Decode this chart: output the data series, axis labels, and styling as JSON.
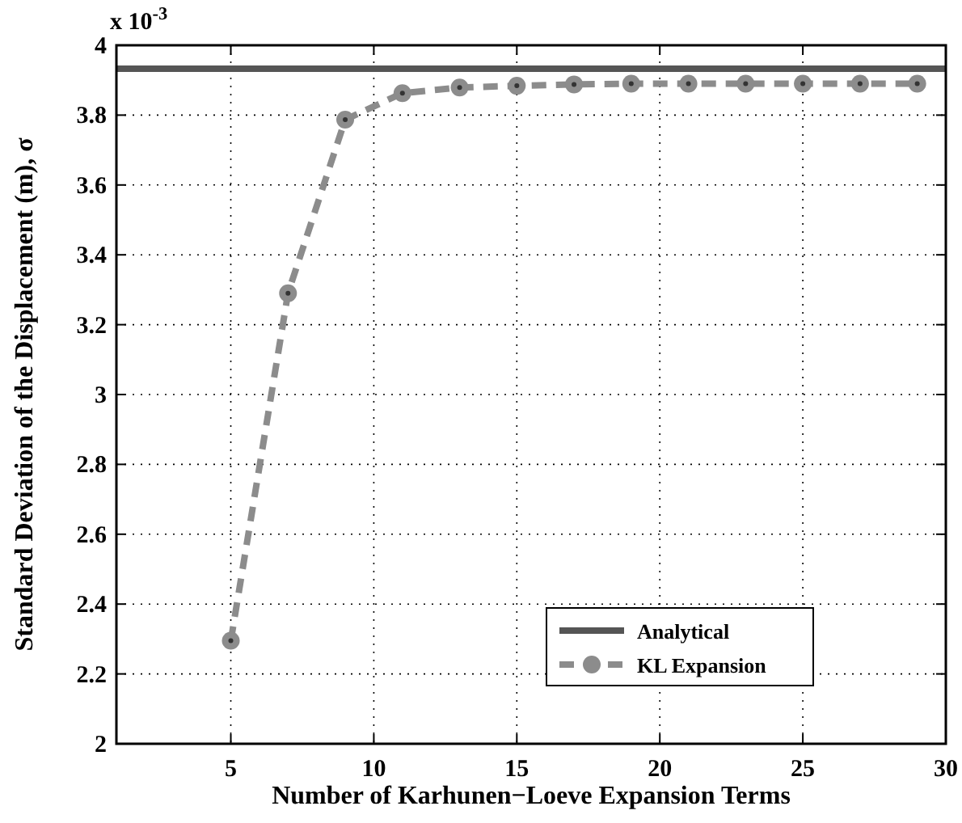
{
  "chart_data": {
    "type": "line",
    "xlabel": "Number of Karhunen−Loeve Expansion Terms",
    "ylabel": "Standard Deviation of the Displacement (m), σ",
    "annotations": [
      "x 10$^{-3}$"
    ],
    "xlim": [
      1,
      30
    ],
    "xticks": [
      5,
      10,
      15,
      20,
      25,
      30
    ],
    "ylim": [
      2,
      4
    ],
    "yticks": [
      2,
      2.2,
      2.4,
      2.6,
      2.8,
      3,
      3.2,
      3.4,
      3.6,
      3.8,
      4
    ],
    "grid": true,
    "legend": "bottom right",
    "series": [
      {
        "name": "Analytical",
        "color": "#555555",
        "x": [
          1,
          30
        ],
        "values": [
          3.933,
          3.933
        ],
        "line_style": "solid",
        "marker": "none"
      },
      {
        "name": "KL Expansion",
        "color": "#8c8c8c",
        "x": [
          5,
          7,
          9,
          11,
          13,
          15,
          17,
          19,
          21,
          23,
          25,
          27,
          29
        ],
        "values": [
          2.295,
          3.29,
          3.787,
          3.863,
          3.879,
          3.884,
          3.888,
          3.89,
          3.89,
          3.89,
          3.89,
          3.89,
          3.89
        ],
        "line_style": "dashed",
        "marker": "circle"
      }
    ]
  }
}
